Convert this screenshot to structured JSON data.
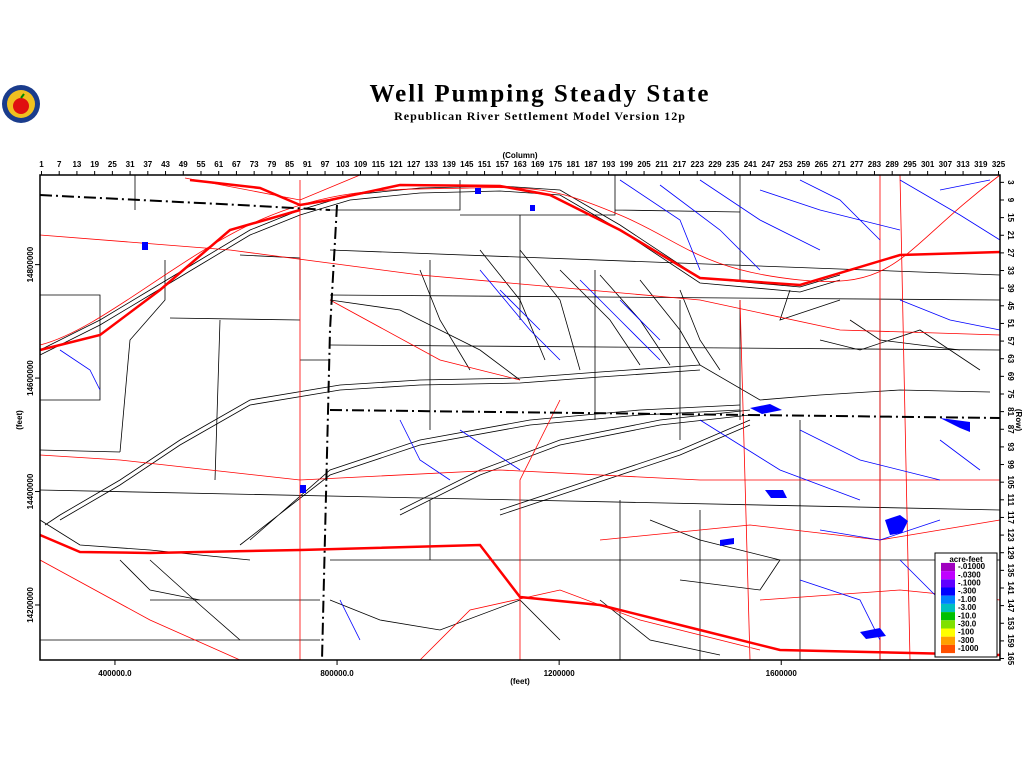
{
  "header": {
    "title": "Well Pumping Steady State",
    "subtitle": "Republican River Settlement Model Version 12p"
  },
  "axes": {
    "column_title": "(Column)",
    "row_title": "(Row)",
    "x_title": "(feet)",
    "y_title": "(feet)",
    "columns": [
      1,
      7,
      13,
      19,
      25,
      31,
      37,
      43,
      49,
      55,
      61,
      67,
      73,
      79,
      85,
      91,
      97,
      103,
      109,
      115,
      121,
      127,
      133,
      139,
      145,
      151,
      157,
      163,
      169,
      175,
      181,
      187,
      193,
      199,
      205,
      211,
      217,
      223,
      229,
      235,
      241,
      247,
      253,
      259,
      265,
      271,
      277,
      283,
      289,
      295,
      301,
      307,
      313,
      319,
      325
    ],
    "collim": [
      0.5,
      325.5
    ],
    "rows": [
      3,
      9,
      15,
      21,
      27,
      33,
      39,
      45,
      51,
      57,
      63,
      69,
      75,
      81,
      87,
      93,
      99,
      105,
      111,
      117,
      123,
      129,
      135,
      141,
      147,
      153,
      159,
      165
    ],
    "rowlim": [
      0.5,
      165.5
    ],
    "xlim": [
      265000,
      1994000
    ],
    "xticks": [
      {
        "value": 400000,
        "label": "400000.0"
      },
      {
        "value": 800000,
        "label": "800000.0"
      },
      1200000,
      1600000
    ],
    "ylim": [
      14103000,
      14958000
    ],
    "yticks": [
      14200000,
      14400000,
      14600000,
      14800000
    ]
  },
  "legend": {
    "title": "acre-feet",
    "items": [
      {
        "label": "-.01000",
        "color": "#a000c0"
      },
      {
        "label": "-.0300",
        "color": "#c000ff"
      },
      {
        "label": "-.1000",
        "color": "#6000ff"
      },
      {
        "label": "-.300",
        "color": "#0000ff"
      },
      {
        "label": "-1.00",
        "color": "#0080ff"
      },
      {
        "label": "-3.00",
        "color": "#00c0c0"
      },
      {
        "label": "-10.0",
        "color": "#00c000"
      },
      {
        "label": "-30.0",
        "color": "#80e000"
      },
      {
        "label": "-100",
        "color": "#ffff00"
      },
      {
        "label": "-300",
        "color": "#ffa000"
      },
      {
        "label": "-1000",
        "color": "#ff5000"
      }
    ]
  }
}
